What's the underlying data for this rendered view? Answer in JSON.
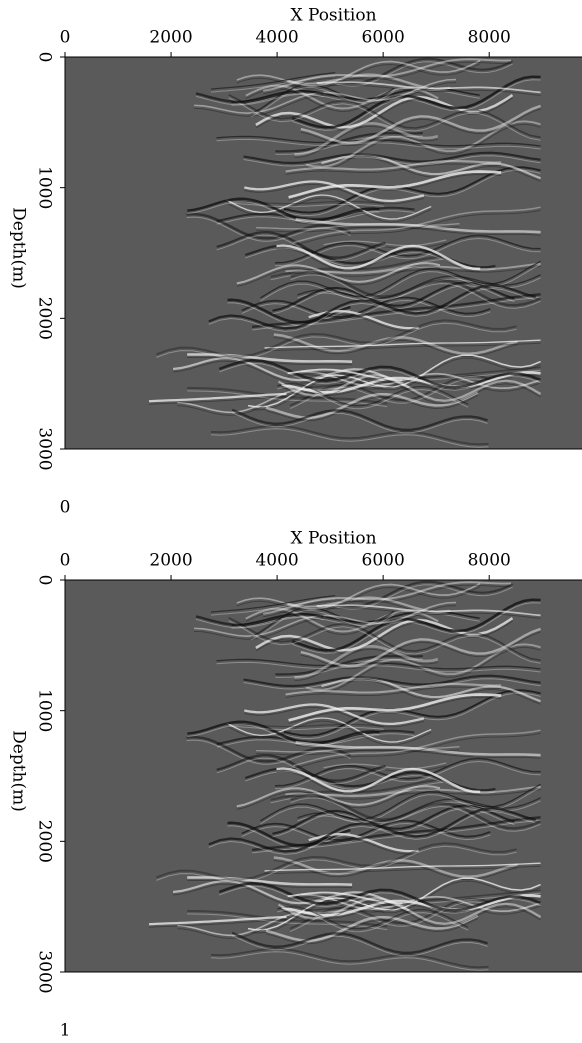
{
  "chart_data": [
    {
      "type": "image",
      "x_label": "X Position",
      "y_label": "Depth(m)",
      "panel_label": "0",
      "xlim": [
        0,
        9750
      ],
      "xticks": [
        0,
        2000,
        4000,
        6000,
        8000
      ],
      "ylim": [
        0,
        3000
      ],
      "yticks": [
        0,
        1000,
        2000,
        3000
      ]
    },
    {
      "type": "image",
      "x_label": "X Position",
      "y_label": "Depth(m)",
      "panel_label": "1",
      "xlim": [
        0,
        9750
      ],
      "xticks": [
        0,
        2000,
        4000,
        6000,
        8000
      ],
      "ylim": [
        0,
        3000
      ],
      "yticks": [
        0,
        1000,
        2000,
        3000
      ]
    }
  ]
}
